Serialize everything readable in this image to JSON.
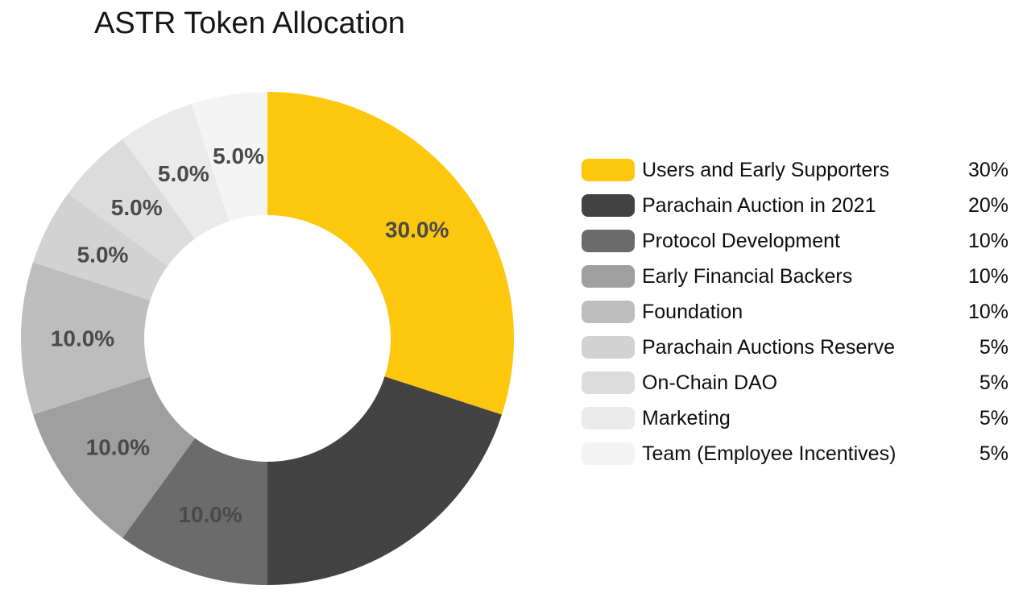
{
  "chart_data": {
    "type": "pie",
    "variant": "donut",
    "title": "ASTR Token Allocation",
    "start_angle_deg": 0,
    "direction": "clockwise",
    "inner_radius_ratio": 0.5,
    "legend_position": "right",
    "background_color": "#ffffff",
    "title_color": "#161616",
    "slice_label_color": "#4a4a4a",
    "slices": [
      {
        "label": "Users and Early Supporters",
        "value": 30,
        "legend_value": "30%",
        "slice_label": "30.0%",
        "color": "#fdc70e"
      },
      {
        "label": "Parachain Auction in 2021",
        "value": 20,
        "legend_value": "20%",
        "slice_label": null,
        "color": "#434343"
      },
      {
        "label": "Protocol Development",
        "value": 10,
        "legend_value": "10%",
        "slice_label": "10.0%",
        "color": "#6b6b6b"
      },
      {
        "label": "Early Financial Backers",
        "value": 10,
        "legend_value": "10%",
        "slice_label": "10.0%",
        "color": "#9f9f9f"
      },
      {
        "label": "Foundation",
        "value": 10,
        "legend_value": "10%",
        "slice_label": "10.0%",
        "color": "#bdbdbd"
      },
      {
        "label": "Parachain Auctions Reserve",
        "value": 5,
        "legend_value": "5%",
        "slice_label": "5.0%",
        "color": "#d2d2d2"
      },
      {
        "label": "On-Chain DAO",
        "value": 5,
        "legend_value": "5%",
        "slice_label": "5.0%",
        "color": "#dcdcdc"
      },
      {
        "label": "Marketing",
        "value": 5,
        "legend_value": "5%",
        "slice_label": "5.0%",
        "color": "#eaeaea"
      },
      {
        "label": "Team (Employee Incentives)",
        "value": 5,
        "legend_value": "5%",
        "slice_label": "5.0%",
        "color": "#f4f4f4"
      }
    ]
  }
}
